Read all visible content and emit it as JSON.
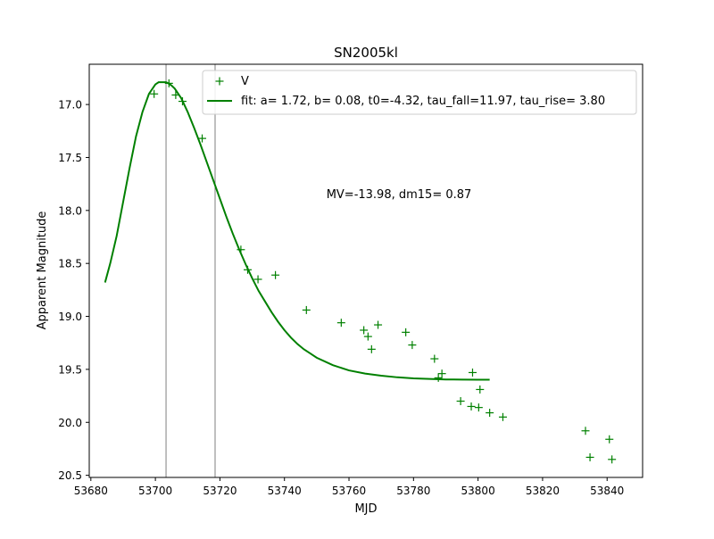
{
  "chart_data": {
    "type": "scatter",
    "title": "SN2005kl",
    "xlabel": "MJD",
    "ylabel": "Apparent Magnitude",
    "xlim": [
      53679.5,
      53851
    ],
    "ylim": [
      20.52,
      16.62
    ],
    "y_inverted": true,
    "grid": false,
    "legend_position": "top-right",
    "x_ticks": [
      53680,
      53700,
      53720,
      53740,
      53760,
      53780,
      53800,
      53820,
      53840
    ],
    "x_tick_labels": [
      "53680",
      "53700",
      "53720",
      "53740",
      "53760",
      "53780",
      "53800",
      "53820",
      "53840"
    ],
    "y_ticks": [
      17.0,
      17.5,
      18.0,
      18.5,
      19.0,
      19.5,
      20.0,
      20.5
    ],
    "y_tick_labels": [
      "17.0",
      "17.5",
      "18.0",
      "18.5",
      "19.0",
      "19.5",
      "20.0",
      "20.5"
    ],
    "vlines": [
      53703.3,
      53718.5
    ],
    "annotation": "MV=-13.98, dm15= 0.87",
    "colors": {
      "series": "#008000",
      "vline": "#808080"
    },
    "series": [
      {
        "name": "V",
        "marker": "+",
        "points": [
          [
            53699.6,
            16.9
          ],
          [
            53704.2,
            16.8
          ],
          [
            53706.3,
            16.91
          ],
          [
            53708.4,
            16.97
          ],
          [
            53714.5,
            17.32
          ],
          [
            53726.5,
            18.37
          ],
          [
            53728.6,
            18.56
          ],
          [
            53731.8,
            18.65
          ],
          [
            53737.2,
            18.61
          ],
          [
            53746.8,
            18.94
          ],
          [
            53757.6,
            19.06
          ],
          [
            53764.6,
            19.13
          ],
          [
            53765.9,
            19.19
          ],
          [
            53767.0,
            19.31
          ],
          [
            53769.0,
            19.08
          ],
          [
            53777.6,
            19.15
          ],
          [
            53779.6,
            19.27
          ],
          [
            53786.5,
            19.4
          ],
          [
            53787.7,
            19.58
          ],
          [
            53788.8,
            19.54
          ],
          [
            53794.6,
            19.8
          ],
          [
            53797.9,
            19.85
          ],
          [
            53798.3,
            19.53
          ],
          [
            53800.2,
            19.86
          ],
          [
            53800.6,
            19.69
          ],
          [
            53803.6,
            19.91
          ],
          [
            53807.7,
            19.95
          ],
          [
            53833.3,
            20.08
          ],
          [
            53834.7,
            20.33
          ],
          [
            53840.7,
            20.16
          ],
          [
            53841.5,
            20.35
          ]
        ]
      },
      {
        "name": "fit: a= 1.72, b= 0.08, t0=-4.32, tau_fall=11.97, tau_rise= 3.80",
        "type": "line",
        "x": [
          53684.4,
          53686,
          53688,
          53690,
          53692,
          53694,
          53696,
          53698,
          53700,
          53701,
          53702,
          53703,
          53703.3,
          53704,
          53705,
          53706,
          53708,
          53710,
          53712,
          53714,
          53716,
          53718,
          53720,
          53722,
          53724,
          53726,
          53728,
          53730,
          53732,
          53734,
          53736,
          53738,
          53740,
          53742,
          53744,
          53746,
          53748,
          53750,
          53755,
          53760,
          53765,
          53770,
          53775,
          53780,
          53785,
          53790,
          53795,
          53800,
          53803.6
        ],
        "y": [
          18.68,
          18.5,
          18.24,
          17.92,
          17.6,
          17.3,
          17.07,
          16.9,
          16.81,
          16.79,
          16.79,
          16.79,
          16.79,
          16.8,
          16.82,
          16.85,
          16.94,
          17.07,
          17.22,
          17.38,
          17.55,
          17.72,
          17.89,
          18.06,
          18.22,
          18.37,
          18.51,
          18.64,
          18.76,
          18.86,
          18.96,
          19.05,
          19.13,
          19.2,
          19.26,
          19.31,
          19.35,
          19.39,
          19.46,
          19.51,
          19.54,
          19.56,
          19.575,
          19.585,
          19.59,
          19.595,
          19.597,
          19.598,
          19.598
        ]
      }
    ]
  }
}
